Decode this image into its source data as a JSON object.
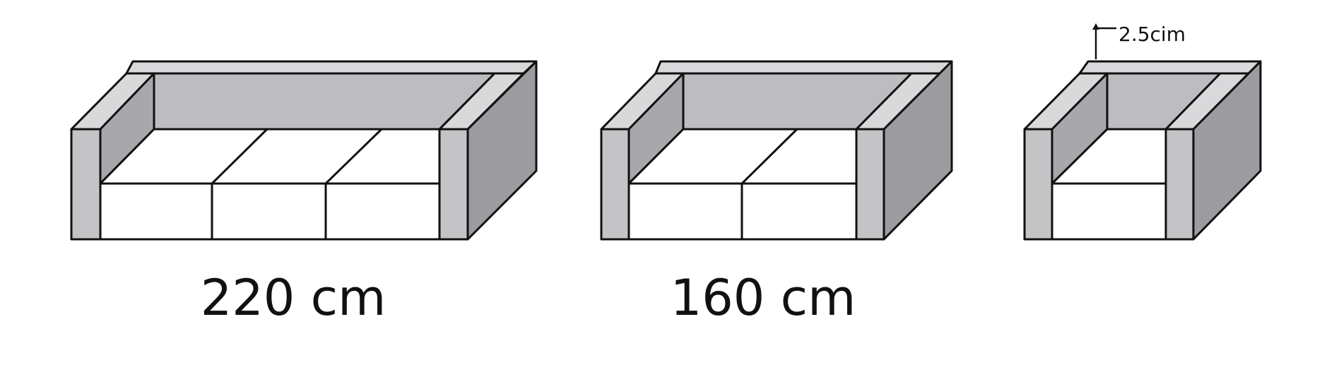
{
  "labels": {
    "sofa_large": "220 cm",
    "sofa_medium": "160 cm",
    "armchair_thickness": "2.5cim"
  },
  "colors": {
    "outline": "#111111",
    "back_fill": "#bdbdc1",
    "arm_fill": "#c4c4c7",
    "inner_arm_fill": "#a8a8ac",
    "side_fill": "#9c9ca0",
    "top_fill": "#d9d9db",
    "cushion_fill": "#ffffff"
  }
}
